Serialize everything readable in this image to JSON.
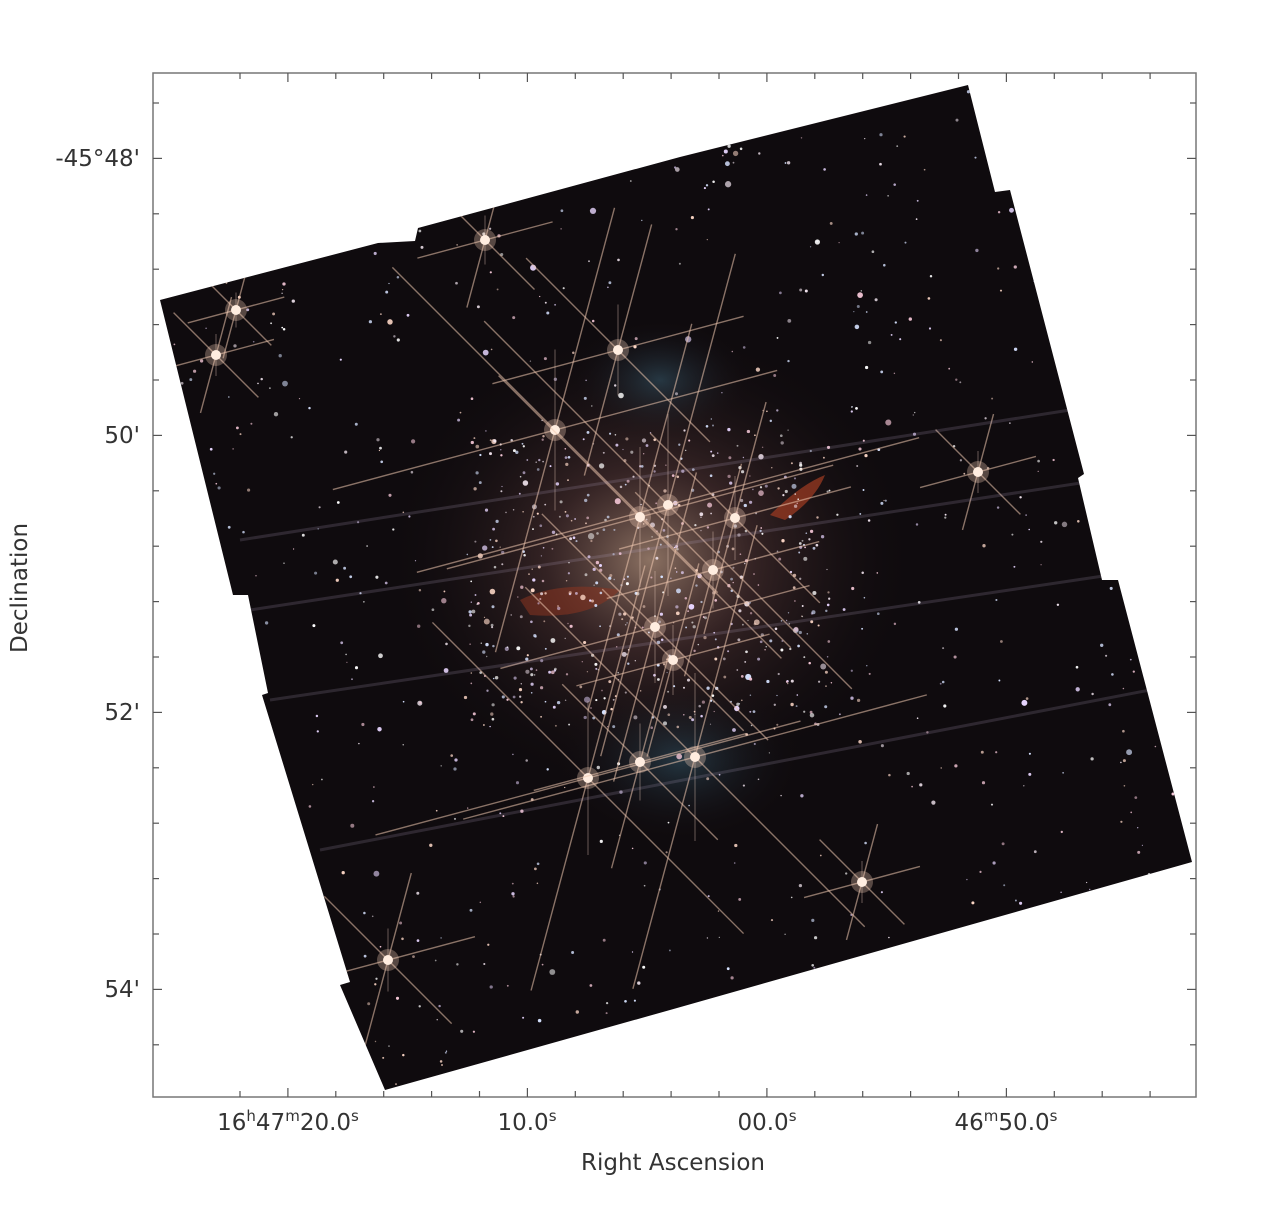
{
  "figure": {
    "x_axis": {
      "label": "Right Ascension",
      "ticks": [
        [
          "16",
          "h",
          "47",
          "m",
          "20.0",
          "s"
        ],
        [
          "10.0",
          "s"
        ],
        [
          "00.0",
          "s"
        ],
        [
          "46",
          "m",
          "50.0",
          "s"
        ]
      ]
    },
    "y_axis": {
      "label": "Declination",
      "ticks": [
        "-45°48'",
        "50'",
        "52'",
        "54'"
      ]
    }
  }
}
